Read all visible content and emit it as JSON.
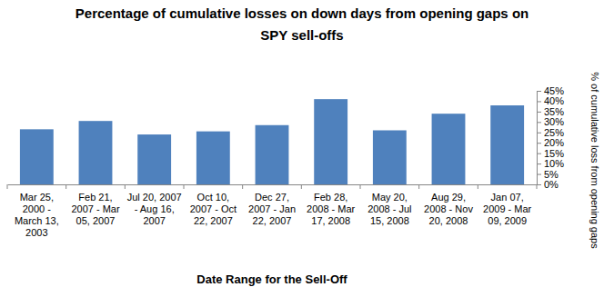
{
  "chart_data": {
    "type": "bar",
    "title": "Percentage of cumulative losses on down days from opening gaps on SPY sell-offs",
    "x_label": "Date Range for the Sell-Off",
    "y_label": "% of cumulative loss from opening gaps",
    "categories": [
      "Mar 25, 2000 - March 13, 2003",
      "Feb 21, 2007 - Mar 05, 2007",
      "Jul 20, 2007 - Aug 16, 2007",
      "Oct 10, 2007 - Oct 22, 2007",
      "Dec 27, 2007 - Jan 22, 2007",
      "Feb 28, 2008 - Mar 17, 2008",
      "May 20, 2008 - Jul 15, 2008",
      "Aug 29, 2008 - Nov 20, 2008",
      "Jan 07, 2009 - Mar 09, 2009"
    ],
    "values": [
      26.5,
      30.5,
      24,
      25.5,
      28.5,
      41,
      26,
      34,
      38
    ],
    "color": "#4f81bd",
    "ylim": [
      0,
      45
    ],
    "yticks": [
      {
        "value": 0,
        "label": "0%"
      },
      {
        "value": 5,
        "label": "5%"
      },
      {
        "value": 10,
        "label": "10%"
      },
      {
        "value": 15,
        "label": "15%"
      },
      {
        "value": 20,
        "label": "20%"
      },
      {
        "value": 25,
        "label": "25%"
      },
      {
        "value": 30,
        "label": "30%"
      },
      {
        "value": 35,
        "label": "35%"
      },
      {
        "value": 40,
        "label": "40%"
      },
      {
        "value": 45,
        "label": "45%"
      }
    ],
    "grid": false
  }
}
